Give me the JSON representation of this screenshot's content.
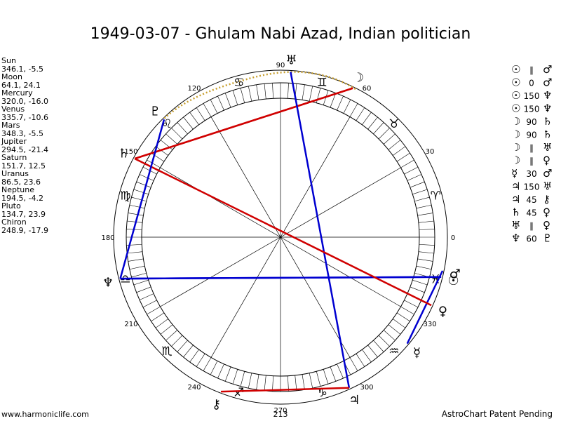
{
  "title": "1949-03-07 - Ghulam Nabi Azad, Indian politician",
  "planets": [
    {
      "name": "Sun",
      "coords": "346.1, -5.5",
      "glyph": "☉"
    },
    {
      "name": "Moon",
      "coords": "64.1, 24.1",
      "glyph": "☽"
    },
    {
      "name": "Mercury",
      "coords": "320.0, -16.0",
      "glyph": "☿"
    },
    {
      "name": "Venus",
      "coords": "335.7, -10.6",
      "glyph": "♀"
    },
    {
      "name": "Mars",
      "coords": "348.3, -5.5",
      "glyph": "♂"
    },
    {
      "name": "Jupiter",
      "coords": "294.5, -21.4",
      "glyph": "♃"
    },
    {
      "name": "Saturn",
      "coords": "151.7, 12.5",
      "glyph": "♄"
    },
    {
      "name": "Uranus",
      "coords": "86.5, 23.6",
      "glyph": "♅"
    },
    {
      "name": "Neptune",
      "coords": "194.5, -4.2",
      "glyph": "♆"
    },
    {
      "name": "Pluto",
      "coords": "134.7, 23.9",
      "glyph": "♇"
    },
    {
      "name": "Chiron",
      "coords": "248.9, -17.9",
      "glyph": "⚷"
    }
  ],
  "aspects": [
    {
      "p1": "☉",
      "angle": "∥",
      "p2": "♂",
      "color": "#d00000"
    },
    {
      "p1": "☉",
      "angle": "0",
      "p2": "♂",
      "color": "#0000d0"
    },
    {
      "p1": "☉",
      "angle": "150",
      "p2": "♆",
      "color": "#0000d0"
    },
    {
      "p1": "☉",
      "angle": "150",
      "p2": "♆",
      "color": "#0000d0"
    },
    {
      "p1": "☽",
      "angle": "90",
      "p2": "♄",
      "color": "#d00000"
    },
    {
      "p1": "☽",
      "angle": "90",
      "p2": "♄",
      "color": "#d00000"
    },
    {
      "p1": "☽",
      "angle": "∥",
      "p2": "♅",
      "color": "#d00000"
    },
    {
      "p1": "☽",
      "angle": "∥",
      "p2": "♀",
      "color": "#d00000"
    },
    {
      "p1": "☿",
      "angle": "30",
      "p2": "♂",
      "color": "#0000d0"
    },
    {
      "p1": "♃",
      "angle": "150",
      "p2": "♅",
      "color": "#0000d0"
    },
    {
      "p1": "♃",
      "angle": "45",
      "p2": "⚷",
      "color": "#d00000"
    },
    {
      "p1": "♄",
      "angle": "45",
      "p2": "♀",
      "color": "#d00000"
    },
    {
      "p1": "♅",
      "angle": "∥",
      "p2": "♀",
      "color": "#d00000"
    },
    {
      "p1": "♆",
      "angle": "60",
      "p2": "♇",
      "color": "#0000d0"
    }
  ],
  "signs": [
    "♈",
    "♉",
    "♊",
    "♋",
    "♌",
    "♍",
    "♎",
    "♏",
    "♐",
    "♑",
    "♒",
    "♓"
  ],
  "degrees": [
    0,
    30,
    60,
    90,
    120,
    150,
    180,
    210,
    240,
    270,
    300,
    330
  ],
  "footer": {
    "left": "www.harmoniclife.com",
    "center": "213",
    "right": "AstroChart Patent Pending"
  }
}
